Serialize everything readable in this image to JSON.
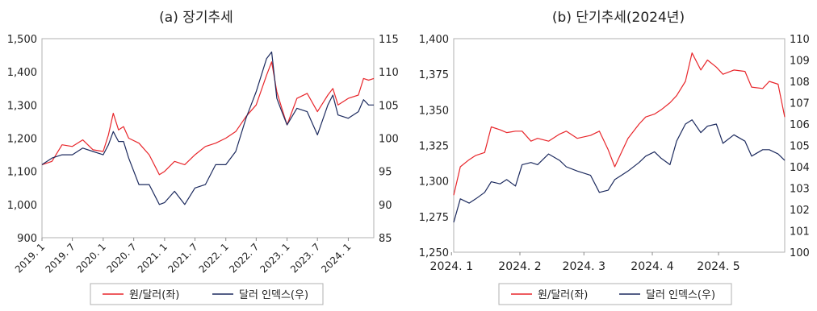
{
  "chart_data": [
    {
      "type": "line",
      "title": "(a) 장기추세",
      "x_ticks": [
        "2019. 1",
        "2019. 7",
        "2020. 1",
        "2020. 7",
        "2021. 1",
        "2021. 7",
        "2022. 1",
        "2022. 7",
        "2023. 1",
        "2023. 7",
        "2024. 1"
      ],
      "x_range": [
        "2019-01",
        "2024-06"
      ],
      "y_left": {
        "ticks": [
          "900",
          "1,000",
          "1,100",
          "1,200",
          "1,300",
          "1,400",
          "1,500"
        ],
        "range": [
          900,
          1500
        ]
      },
      "y_right": {
        "ticks": [
          "85",
          "90",
          "95",
          "100",
          "105",
          "110",
          "115"
        ],
        "range": [
          85,
          115
        ]
      },
      "legend_position": "bottom",
      "grid": false,
      "series": [
        {
          "name": "원/달러(좌)",
          "axis": "left",
          "color": "#e8262b",
          "x": [
            "2019-01",
            "2019-03",
            "2019-05",
            "2019-07",
            "2019-09",
            "2019-11",
            "2020-01",
            "2020-02",
            "2020-03",
            "2020-04",
            "2020-05",
            "2020-06",
            "2020-08",
            "2020-10",
            "2020-12",
            "2021-01",
            "2021-03",
            "2021-05",
            "2021-07",
            "2021-09",
            "2021-11",
            "2022-01",
            "2022-03",
            "2022-05",
            "2022-07",
            "2022-09",
            "2022-10",
            "2022-11",
            "2022-12",
            "2023-01",
            "2023-03",
            "2023-05",
            "2023-07",
            "2023-09",
            "2023-10",
            "2023-11",
            "2024-01",
            "2024-03",
            "2024-04",
            "2024-05",
            "2024-06"
          ],
          "values": [
            1120,
            1130,
            1180,
            1175,
            1195,
            1165,
            1160,
            1210,
            1275,
            1225,
            1235,
            1200,
            1185,
            1150,
            1090,
            1100,
            1130,
            1120,
            1150,
            1175,
            1185,
            1200,
            1220,
            1265,
            1300,
            1390,
            1430,
            1340,
            1290,
            1240,
            1320,
            1335,
            1280,
            1330,
            1350,
            1300,
            1320,
            1330,
            1380,
            1375,
            1380
          ]
        },
        {
          "name": "달러 인덱스(우)",
          "axis": "right",
          "color": "#1c2a5e",
          "x": [
            "2019-01",
            "2019-03",
            "2019-05",
            "2019-07",
            "2019-09",
            "2019-11",
            "2020-01",
            "2020-02",
            "2020-03",
            "2020-04",
            "2020-05",
            "2020-06",
            "2020-08",
            "2020-10",
            "2020-12",
            "2021-01",
            "2021-03",
            "2021-05",
            "2021-07",
            "2021-09",
            "2021-11",
            "2022-01",
            "2022-03",
            "2022-05",
            "2022-07",
            "2022-09",
            "2022-10",
            "2022-11",
            "2022-12",
            "2023-01",
            "2023-03",
            "2023-05",
            "2023-07",
            "2023-09",
            "2023-10",
            "2023-11",
            "2024-01",
            "2024-03",
            "2024-04",
            "2024-05",
            "2024-06"
          ],
          "values": [
            96,
            97,
            97.5,
            97.5,
            98.5,
            98,
            97.5,
            99,
            101,
            99.5,
            99.5,
            97,
            93,
            93,
            90,
            90.3,
            92,
            90,
            92.5,
            93,
            96,
            96,
            98,
            103,
            107,
            112,
            113,
            106,
            104,
            102,
            104.5,
            104,
            100.5,
            105,
            106.5,
            103.5,
            103,
            104,
            105.8,
            105,
            105
          ]
        }
      ]
    },
    {
      "type": "line",
      "title": "(b) 단기추세(2024년)",
      "x_ticks": [
        "2024. 1",
        "2024. 2",
        "2024. 3",
        "2024. 4",
        "2024. 5"
      ],
      "x_range": [
        "2024-01-02",
        "2024-05-31"
      ],
      "y_left": {
        "ticks": [
          "1,250",
          "1,275",
          "1,300",
          "1,325",
          "1,350",
          "1,375",
          "1,400"
        ],
        "range": [
          1250,
          1400
        ]
      },
      "y_right": {
        "ticks": [
          "100",
          "101",
          "102",
          "103",
          "104",
          "105",
          "106",
          "107",
          "108",
          "109",
          "110"
        ],
        "range": [
          100,
          110
        ]
      },
      "legend_position": "bottom",
      "grid": false,
      "series": [
        {
          "name": "원/달러(좌)",
          "axis": "left",
          "color": "#e8262b",
          "x": [
            "2024-01-02",
            "2024-01-05",
            "2024-01-09",
            "2024-01-12",
            "2024-01-16",
            "2024-01-19",
            "2024-01-23",
            "2024-01-26",
            "2024-01-30",
            "2024-02-02",
            "2024-02-06",
            "2024-02-09",
            "2024-02-14",
            "2024-02-19",
            "2024-02-22",
            "2024-02-27",
            "2024-03-04",
            "2024-03-08",
            "2024-03-12",
            "2024-03-15",
            "2024-03-18",
            "2024-03-21",
            "2024-03-26",
            "2024-03-29",
            "2024-04-02",
            "2024-04-05",
            "2024-04-09",
            "2024-04-12",
            "2024-04-16",
            "2024-04-19",
            "2024-04-23",
            "2024-04-26",
            "2024-04-30",
            "2024-05-03",
            "2024-05-08",
            "2024-05-13",
            "2024-05-16",
            "2024-05-21",
            "2024-05-24",
            "2024-05-28",
            "2024-05-31"
          ],
          "values": [
            1290,
            1310,
            1315,
            1318,
            1320,
            1338,
            1336,
            1334,
            1335,
            1335,
            1328,
            1330,
            1328,
            1333,
            1335,
            1330,
            1332,
            1335,
            1322,
            1310,
            1320,
            1330,
            1340,
            1345,
            1347,
            1350,
            1355,
            1360,
            1370,
            1390,
            1378,
            1385,
            1380,
            1375,
            1378,
            1377,
            1366,
            1365,
            1370,
            1368,
            1345
          ]
        },
        {
          "name": "달러 인덱스(우)",
          "axis": "right",
          "color": "#1c2a5e",
          "x": [
            "2024-01-02",
            "2024-01-05",
            "2024-01-09",
            "2024-01-12",
            "2024-01-16",
            "2024-01-19",
            "2024-01-23",
            "2024-01-26",
            "2024-01-30",
            "2024-02-02",
            "2024-02-06",
            "2024-02-09",
            "2024-02-14",
            "2024-02-19",
            "2024-02-22",
            "2024-02-27",
            "2024-03-04",
            "2024-03-08",
            "2024-03-12",
            "2024-03-15",
            "2024-03-18",
            "2024-03-21",
            "2024-03-26",
            "2024-03-29",
            "2024-04-02",
            "2024-04-05",
            "2024-04-09",
            "2024-04-12",
            "2024-04-16",
            "2024-04-19",
            "2024-04-23",
            "2024-04-26",
            "2024-04-30",
            "2024-05-03",
            "2024-05-08",
            "2024-05-13",
            "2024-05-16",
            "2024-05-21",
            "2024-05-24",
            "2024-05-28",
            "2024-05-31"
          ],
          "values": [
            101.4,
            102.5,
            102.3,
            102.5,
            102.8,
            103.3,
            103.2,
            103.4,
            103.1,
            104.1,
            104.2,
            104.1,
            104.6,
            104.3,
            104.0,
            103.8,
            103.6,
            102.8,
            102.9,
            103.4,
            103.6,
            103.8,
            104.2,
            104.5,
            104.7,
            104.4,
            104.1,
            105.2,
            106.0,
            106.2,
            105.6,
            105.9,
            106.0,
            105.1,
            105.5,
            105.2,
            104.5,
            104.8,
            104.8,
            104.6,
            104.3
          ]
        }
      ]
    }
  ]
}
